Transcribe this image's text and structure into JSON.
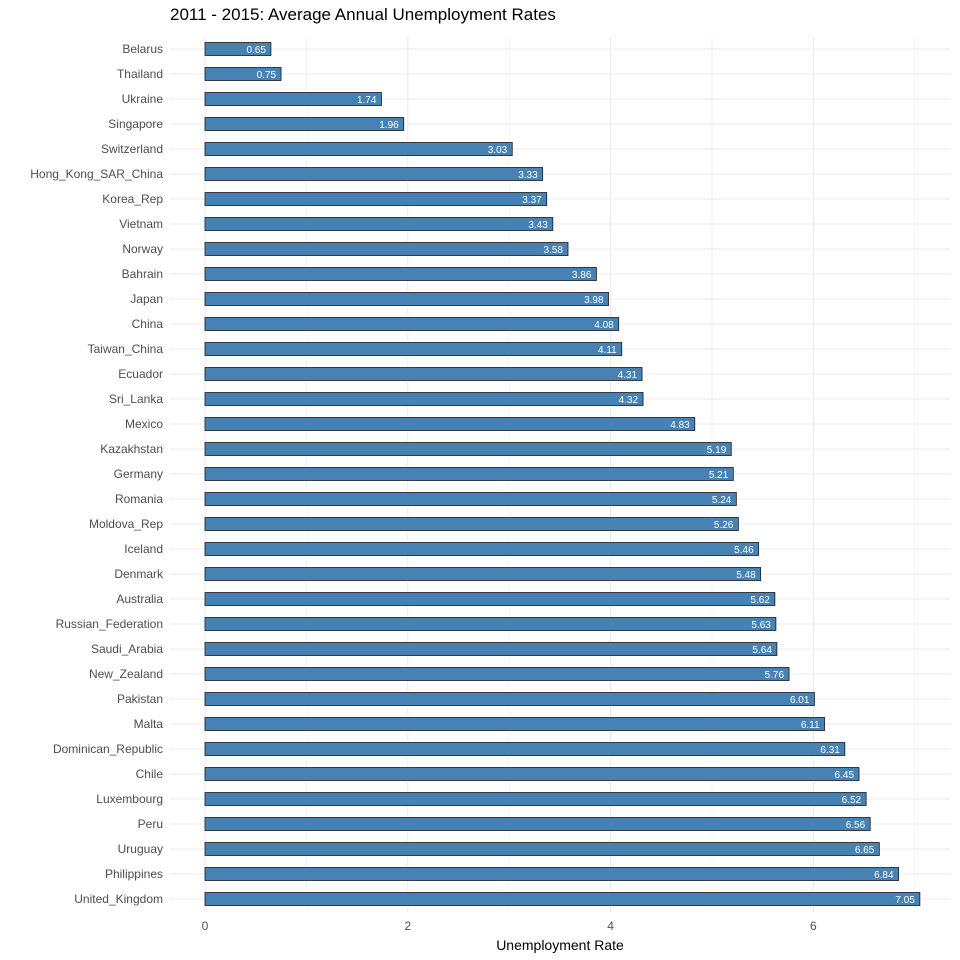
{
  "chart_data": {
    "type": "bar",
    "orientation": "horizontal",
    "title": "2011 - 2015: Average Annual Unemployment Rates",
    "xlabel": "Unemployment Rate",
    "ylabel": "",
    "xlim": [
      0,
      7.35
    ],
    "x_ticks": [
      0,
      2,
      4,
      6
    ],
    "grid": true,
    "bar_color": "#4682B4",
    "bar_outline": "#1a1a1a",
    "grid_color": "#ebebeb",
    "categories": [
      "Belarus",
      "Thailand",
      "Ukraine",
      "Singapore",
      "Switzerland",
      "Hong_Kong_SAR_China",
      "Korea_Rep",
      "Vietnam",
      "Norway",
      "Bahrain",
      "Japan",
      "China",
      "Taiwan_China",
      "Ecuador",
      "Sri_Lanka",
      "Mexico",
      "Kazakhstan",
      "Germany",
      "Romania",
      "Moldova_Rep",
      "Iceland",
      "Denmark",
      "Australia",
      "Russian_Federation",
      "Saudi_Arabia",
      "New_Zealand",
      "Pakistan",
      "Malta",
      "Dominican_Republic",
      "Chile",
      "Luxembourg",
      "Peru",
      "Uruguay",
      "Philippines",
      "United_Kingdom"
    ],
    "values": [
      0.65,
      0.75,
      1.74,
      1.96,
      3.03,
      3.33,
      3.37,
      3.43,
      3.58,
      3.86,
      3.98,
      4.08,
      4.11,
      4.31,
      4.32,
      4.83,
      5.19,
      5.21,
      5.24,
      5.26,
      5.46,
      5.48,
      5.62,
      5.63,
      5.64,
      5.76,
      6.01,
      6.11,
      6.31,
      6.45,
      6.52,
      6.56,
      6.65,
      6.84,
      7.05
    ],
    "value_labels": [
      "0.65",
      "0.75",
      "1.74",
      "1.96",
      "3.03",
      "3.33",
      "3.37",
      "3.43",
      "3.58",
      "3.86",
      "3.98",
      "4.08",
      "4.11",
      "4.31",
      "4.32",
      "4.83",
      "5.19",
      "5.21",
      "5.24",
      "5.26",
      "5.46",
      "5.48",
      "5.62",
      "5.63",
      "5.64",
      "5.76",
      "6.01",
      "6.11",
      "6.31",
      "6.45",
      "6.52",
      "6.56",
      "6.65",
      "6.84",
      "7.05"
    ]
  }
}
